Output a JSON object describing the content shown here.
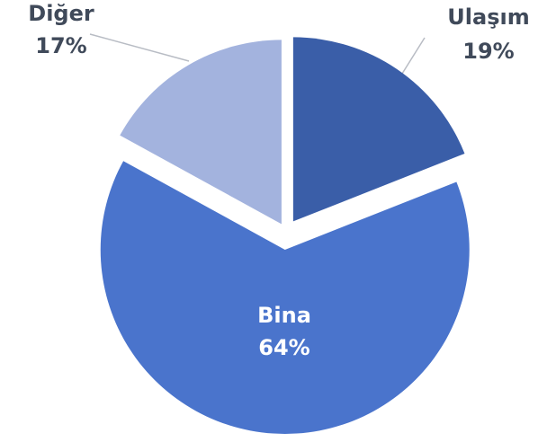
{
  "chart_data": {
    "type": "pie",
    "categories": [
      "Ulaşım",
      "Bina",
      "Diğer"
    ],
    "values": [
      19,
      64,
      17
    ],
    "value_labels": [
      "19%",
      "64%",
      "17%"
    ],
    "colors": [
      "#3a5ea8",
      "#4a74cc",
      "#a3b3de"
    ]
  }
}
